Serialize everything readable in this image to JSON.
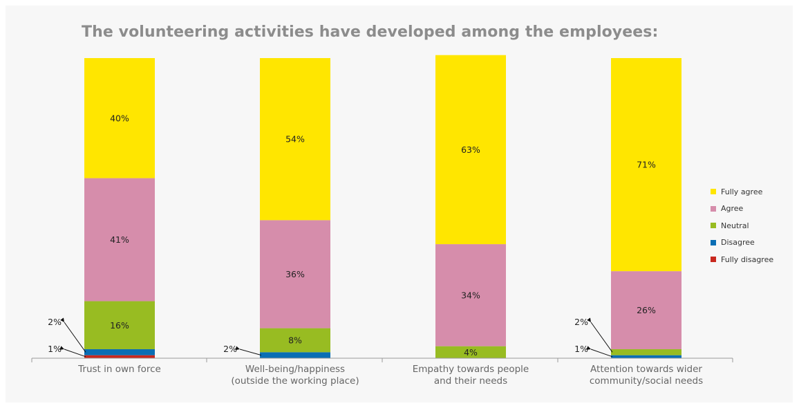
{
  "chart_data": {
    "type": "bar",
    "stacked": true,
    "title": "The volunteering activities have developed among the employees:",
    "categories": [
      "Trust in own force",
      "Well-being/happiness\n(outside the working place)",
      "Empathy towards people\nand their needs",
      "Attention towards wider\ncommunity/social needs"
    ],
    "series": [
      {
        "name": "Fully agree",
        "color": "#FFE600",
        "values": [
          40,
          54,
          63,
          71
        ]
      },
      {
        "name": "Agree",
        "color": "#D68DAB",
        "values": [
          41,
          36,
          34,
          26
        ]
      },
      {
        "name": "Neutral",
        "color": "#98BC22",
        "values": [
          16,
          8,
          4,
          2
        ]
      },
      {
        "name": "Disagree",
        "color": "#0A6EB4",
        "values": [
          2,
          2,
          0,
          1
        ]
      },
      {
        "name": "Fully disagree",
        "color": "#C8281E",
        "values": [
          1,
          0,
          0,
          0
        ]
      }
    ],
    "data_labels": [
      [
        "40%",
        "41%",
        "16%",
        "2%",
        "1%"
      ],
      [
        "54%",
        "36%",
        "8%",
        "2%",
        ""
      ],
      [
        "63%",
        "34%",
        "4%",
        "",
        ""
      ],
      [
        "71%",
        "26%",
        "2%",
        "1%",
        ""
      ]
    ],
    "legend_position": "right",
    "grid": false
  }
}
